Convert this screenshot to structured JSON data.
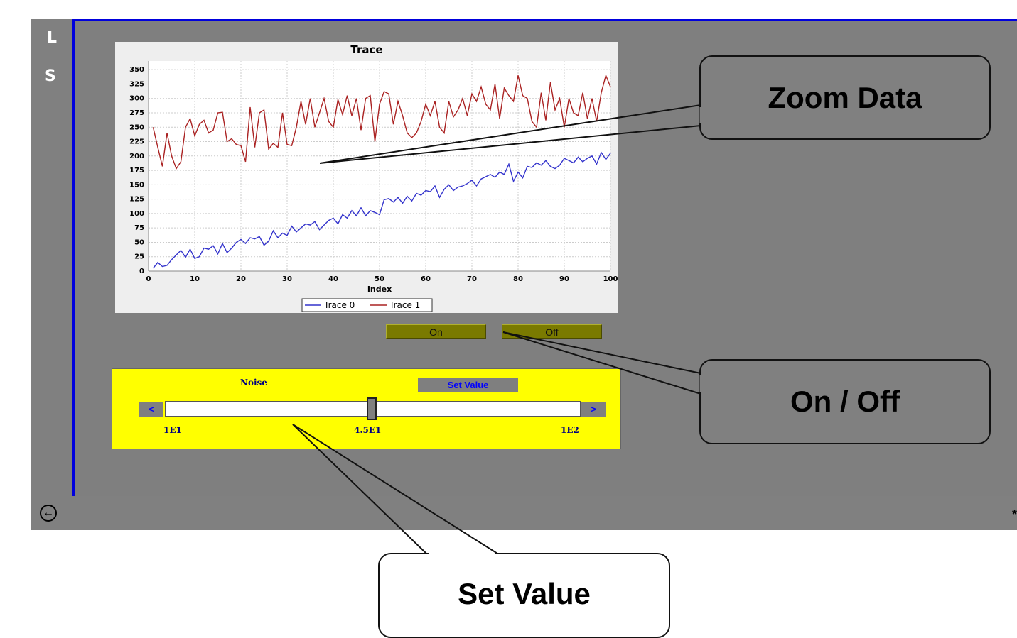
{
  "side_rail": {
    "letter_1": "L",
    "letter_2": "S"
  },
  "nav": {
    "back_icon": "arrow-left-circle-icon",
    "corner_glyph": "*"
  },
  "chart_data": {
    "type": "line",
    "title": "Trace",
    "xlabel": "Index",
    "ylabel": "",
    "xlim": [
      0,
      100
    ],
    "ylim": [
      0,
      365
    ],
    "x_ticks": [
      0,
      10,
      20,
      30,
      40,
      50,
      60,
      70,
      80,
      90,
      100
    ],
    "y_ticks": [
      0,
      25,
      50,
      75,
      100,
      125,
      150,
      175,
      200,
      225,
      250,
      275,
      300,
      325,
      350
    ],
    "grid": true,
    "legend_position": "bottom-center",
    "series": [
      {
        "name": "Trace 0",
        "color": "#3333cc",
        "x": [
          1,
          2,
          3,
          4,
          5,
          6,
          7,
          8,
          9,
          10,
          11,
          12,
          13,
          14,
          15,
          16,
          17,
          18,
          19,
          20,
          21,
          22,
          23,
          24,
          25,
          26,
          27,
          28,
          29,
          30,
          31,
          32,
          33,
          34,
          35,
          36,
          37,
          38,
          39,
          40,
          41,
          42,
          43,
          44,
          45,
          46,
          47,
          48,
          49,
          50,
          51,
          52,
          53,
          54,
          55,
          56,
          57,
          58,
          59,
          60,
          61,
          62,
          63,
          64,
          65,
          66,
          67,
          68,
          69,
          70,
          71,
          72,
          73,
          74,
          75,
          76,
          77,
          78,
          79,
          80,
          81,
          82,
          83,
          84,
          85,
          86,
          87,
          88,
          89,
          90,
          91,
          92,
          93,
          94,
          95,
          96,
          97,
          98,
          99,
          100
        ],
        "y": [
          5,
          15,
          8,
          10,
          20,
          28,
          36,
          24,
          38,
          22,
          25,
          40,
          38,
          44,
          30,
          48,
          32,
          40,
          50,
          55,
          48,
          58,
          56,
          60,
          45,
          52,
          70,
          58,
          66,
          62,
          78,
          68,
          75,
          82,
          80,
          86,
          72,
          80,
          88,
          92,
          82,
          98,
          92,
          105,
          96,
          110,
          96,
          105,
          102,
          98,
          124,
          126,
          120,
          128,
          118,
          130,
          122,
          135,
          132,
          140,
          138,
          148,
          128,
          142,
          150,
          140,
          146,
          148,
          152,
          158,
          148,
          160,
          164,
          168,
          163,
          172,
          168,
          186,
          156,
          172,
          162,
          182,
          180,
          188,
          184,
          192,
          182,
          178,
          184,
          196,
          192,
          188,
          198,
          190,
          196,
          200,
          186,
          206,
          194,
          205
        ]
      },
      {
        "name": "Trace 1",
        "color": "#aa2222",
        "x": [
          1,
          2,
          3,
          4,
          5,
          6,
          7,
          8,
          9,
          10,
          11,
          12,
          13,
          14,
          15,
          16,
          17,
          18,
          19,
          20,
          21,
          22,
          23,
          24,
          25,
          26,
          27,
          28,
          29,
          30,
          31,
          32,
          33,
          34,
          35,
          36,
          37,
          38,
          39,
          40,
          41,
          42,
          43,
          44,
          45,
          46,
          47,
          48,
          49,
          50,
          51,
          52,
          53,
          54,
          55,
          56,
          57,
          58,
          59,
          60,
          61,
          62,
          63,
          64,
          65,
          66,
          67,
          68,
          69,
          70,
          71,
          72,
          73,
          74,
          75,
          76,
          77,
          78,
          79,
          80,
          81,
          82,
          83,
          84,
          85,
          86,
          87,
          88,
          89,
          90,
          91,
          92,
          93,
          94,
          95,
          96,
          97,
          98,
          99,
          100
        ],
        "y": [
          250,
          215,
          182,
          240,
          200,
          178,
          190,
          250,
          265,
          235,
          255,
          262,
          240,
          245,
          275,
          276,
          225,
          230,
          220,
          218,
          190,
          285,
          215,
          275,
          280,
          212,
          222,
          215,
          275,
          220,
          218,
          250,
          295,
          255,
          300,
          250,
          275,
          300,
          260,
          250,
          298,
          272,
          305,
          270,
          300,
          245,
          300,
          305,
          225,
          290,
          312,
          308,
          255,
          295,
          270,
          240,
          232,
          240,
          260,
          290,
          270,
          295,
          250,
          240,
          295,
          268,
          280,
          300,
          270,
          308,
          295,
          320,
          290,
          280,
          325,
          265,
          318,
          305,
          295,
          340,
          305,
          300,
          260,
          250,
          310,
          262,
          328,
          280,
          300,
          250,
          300,
          275,
          270,
          310,
          265,
          300,
          260,
          310,
          340,
          320
        ]
      }
    ]
  },
  "chart_legend": {
    "item_0": "Trace 0",
    "item_1": "Trace 1"
  },
  "toggles": {
    "on_label": "On",
    "off_label": "Off"
  },
  "noise_control": {
    "label": "Noise",
    "set_button": "Set Value",
    "decrement": "<",
    "increment": ">",
    "min_label": "1E1",
    "mid_label": "4.5E1",
    "max_label": "1E2",
    "value_fraction": 0.5
  },
  "callouts": {
    "zoom": "Zoom Data",
    "onoff": "On / Off",
    "setvalue": "Set Value"
  }
}
